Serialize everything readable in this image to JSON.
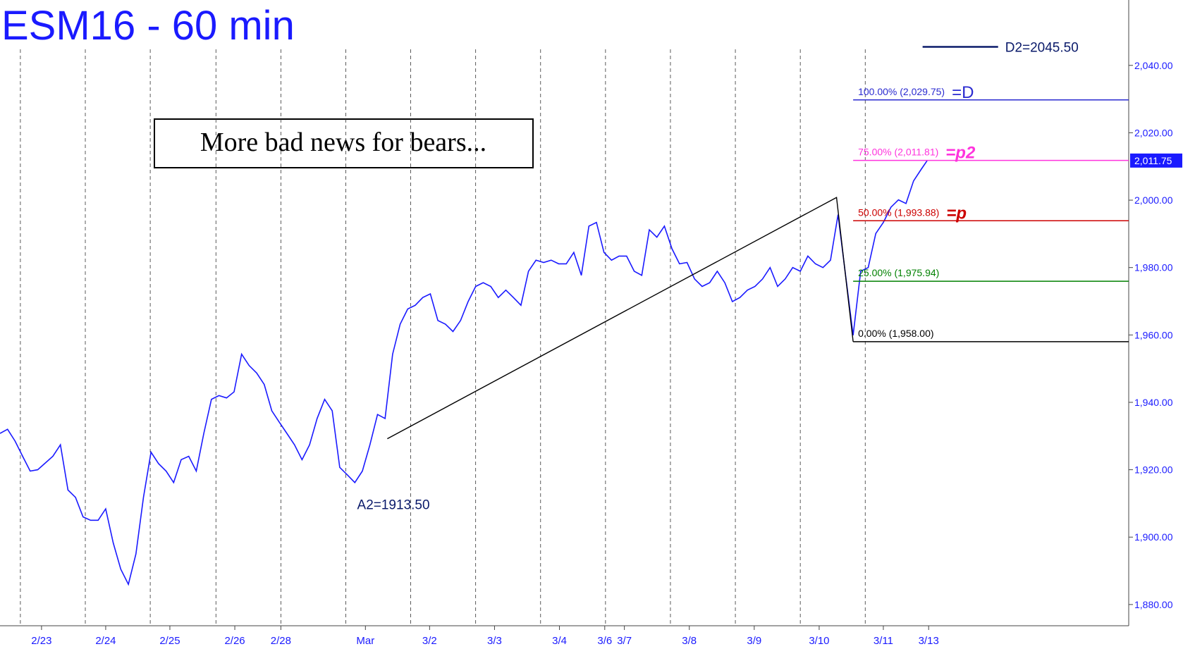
{
  "chart_data": {
    "type": "line",
    "title": "ESM16 - 60 min",
    "annotation_box": "More bad news for bears...",
    "color": "#1a1aff",
    "x": [
      0,
      1,
      2,
      3,
      4,
      5,
      6,
      7,
      8,
      9,
      10,
      11,
      12,
      13,
      14,
      15,
      16,
      17,
      18,
      19,
      20,
      21,
      22,
      23,
      24,
      25,
      26,
      27,
      28,
      29,
      30,
      31,
      32,
      33,
      34,
      35,
      36,
      37,
      38,
      39,
      40,
      41,
      42,
      43,
      44,
      45,
      46,
      47,
      48,
      49,
      50,
      51,
      52,
      53,
      54,
      55,
      56,
      57,
      58,
      59,
      60,
      61,
      62,
      63,
      64,
      65,
      66,
      67,
      68,
      69,
      70,
      71,
      72,
      73,
      74,
      75,
      76,
      77,
      78,
      79,
      80,
      81,
      82,
      83,
      84,
      85,
      86,
      87,
      88,
      89,
      90,
      91,
      92,
      93,
      94,
      95,
      96,
      97,
      98,
      99,
      100,
      101,
      102,
      103,
      104,
      105,
      106,
      107,
      108,
      109,
      110,
      111,
      112,
      113,
      114,
      115,
      116,
      117,
      118,
      119,
      120,
      121,
      122,
      122.8
    ],
    "values": [
      1930.8,
      1932,
      1928.5,
      1924,
      1919.6,
      1920,
      1922,
      1924,
      1927.4,
      1914,
      1911.8,
      1906,
      1905,
      1905,
      1908.4,
      1898.3,
      1890.5,
      1886,
      1895,
      1911.8,
      1925.2,
      1921.8,
      1919.6,
      1916.2,
      1923,
      1924,
      1919.6,
      1930.8,
      1940.9,
      1942,
      1941.3,
      1943.1,
      1954.3,
      1950.9,
      1948.7,
      1945.3,
      1937.5,
      1934.1,
      1930.8,
      1927.4,
      1923,
      1927.4,
      1935.2,
      1940.9,
      1937.5,
      1920.7,
      1918.5,
      1916.2,
      1919.6,
      1927.4,
      1936.4,
      1935.2,
      1954.3,
      1963.2,
      1967.7,
      1968.8,
      1971.1,
      1972.2,
      1964.3,
      1963.2,
      1961,
      1964.3,
      1969.9,
      1974.4,
      1975.5,
      1974.4,
      1971.1,
      1973.3,
      1971.1,
      1968.8,
      1978.9,
      1982.2,
      1981.5,
      1982.2,
      1981.1,
      1981.1,
      1984.5,
      1977.7,
      1992.3,
      1993.4,
      1984.5,
      1982.2,
      1983.4,
      1983.4,
      1978.9,
      1977.7,
      1991.2,
      1989,
      1992.3,
      1985.6,
      1981.1,
      1981.5,
      1976.6,
      1974.4,
      1975.5,
      1978.9,
      1975.5,
      1969.9,
      1971.1,
      1973.3,
      1974.4,
      1976.6,
      1980,
      1974.4,
      1976.6,
      1980,
      1978.9,
      1983.4,
      1981.1,
      1980,
      1982.2,
      1995.7,
      1977.7,
      1959.9,
      1978.9,
      1980,
      1990.1,
      1993.4,
      1997.9,
      2000.1,
      1999,
      2005.7,
      2009.1,
      2011.75
    ],
    "xlim": [
      0,
      149.5
    ],
    "ylim": [
      1873.7,
      2059.4
    ],
    "yticks": [
      {
        "value": 1880,
        "label": "1,880.00"
      },
      {
        "value": 1900,
        "label": "1,900.00"
      },
      {
        "value": 1920,
        "label": "1,920.00"
      },
      {
        "value": 1940,
        "label": "1,940.00"
      },
      {
        "value": 1960,
        "label": "1,960.00"
      },
      {
        "value": 1980,
        "label": "1,980.00"
      },
      {
        "value": 2000,
        "label": "2,000.00"
      },
      {
        "value": 2020,
        "label": "2,020.00"
      },
      {
        "value": 2040,
        "label": "2,040.00"
      }
    ],
    "xticks": [
      {
        "value": 5.5,
        "label": "2/23"
      },
      {
        "value": 14,
        "label": "2/24"
      },
      {
        "value": 22.5,
        "label": "2/25"
      },
      {
        "value": 31.1,
        "label": "2/26"
      },
      {
        "value": 37.2,
        "label": "2/28"
      },
      {
        "value": 48.4,
        "label": "Mar"
      },
      {
        "value": 56.9,
        "label": "3/2"
      },
      {
        "value": 65.5,
        "label": "3/3"
      },
      {
        "value": 74.1,
        "label": "3/4"
      },
      {
        "value": 80.1,
        "label": "3/6"
      },
      {
        "value": 82.7,
        "label": "3/7"
      },
      {
        "value": 91.3,
        "label": "3/8"
      },
      {
        "value": 99.9,
        "label": "3/9"
      },
      {
        "value": 108.5,
        "label": "3/10"
      },
      {
        "value": 117,
        "label": "3/11"
      },
      {
        "value": 123,
        "label": "3/13"
      }
    ],
    "xgrid": [
      2.7,
      11.3,
      19.9,
      28.6,
      37.2,
      45.8,
      54.4,
      63,
      71.6,
      80.2,
      88.8,
      97.4,
      106,
      114.6
    ],
    "fib_levels": [
      {
        "value": 2029.75,
        "label": "100.00% (2,029.75)",
        "tag": "=D",
        "color": "#2a2ad0",
        "x_start": 113
      },
      {
        "value": 2011.81,
        "label": "75.00% (2,011.81)",
        "tag": "=p2",
        "color": "#ff33dd",
        "x_start": 113
      },
      {
        "value": 1993.88,
        "label": "50.00% (1,993.88)",
        "tag": "=p",
        "color": "#cc0000",
        "x_start": 113
      },
      {
        "value": 1975.94,
        "label": "25.00% (1,975.94)",
        "color": "#008000",
        "x_start": 113
      },
      {
        "value": 1958,
        "label": "0.00% (1,958.00)",
        "color": "#000000",
        "x_start": 113
      }
    ],
    "pattern_line": {
      "x": [
        51.3,
        110.8,
        113
      ],
      "values": [
        1929.2,
        2000.8,
        1958
      ]
    },
    "d2": {
      "value": 2045.5,
      "label": "D2=2045.50",
      "x": [
        122.2,
        132.2
      ]
    },
    "a2": {
      "value": 1913.5,
      "label": "A2=1913.50",
      "x": 47.3
    },
    "last_price": {
      "value": 2011.75,
      "label": "2,011.75"
    }
  }
}
